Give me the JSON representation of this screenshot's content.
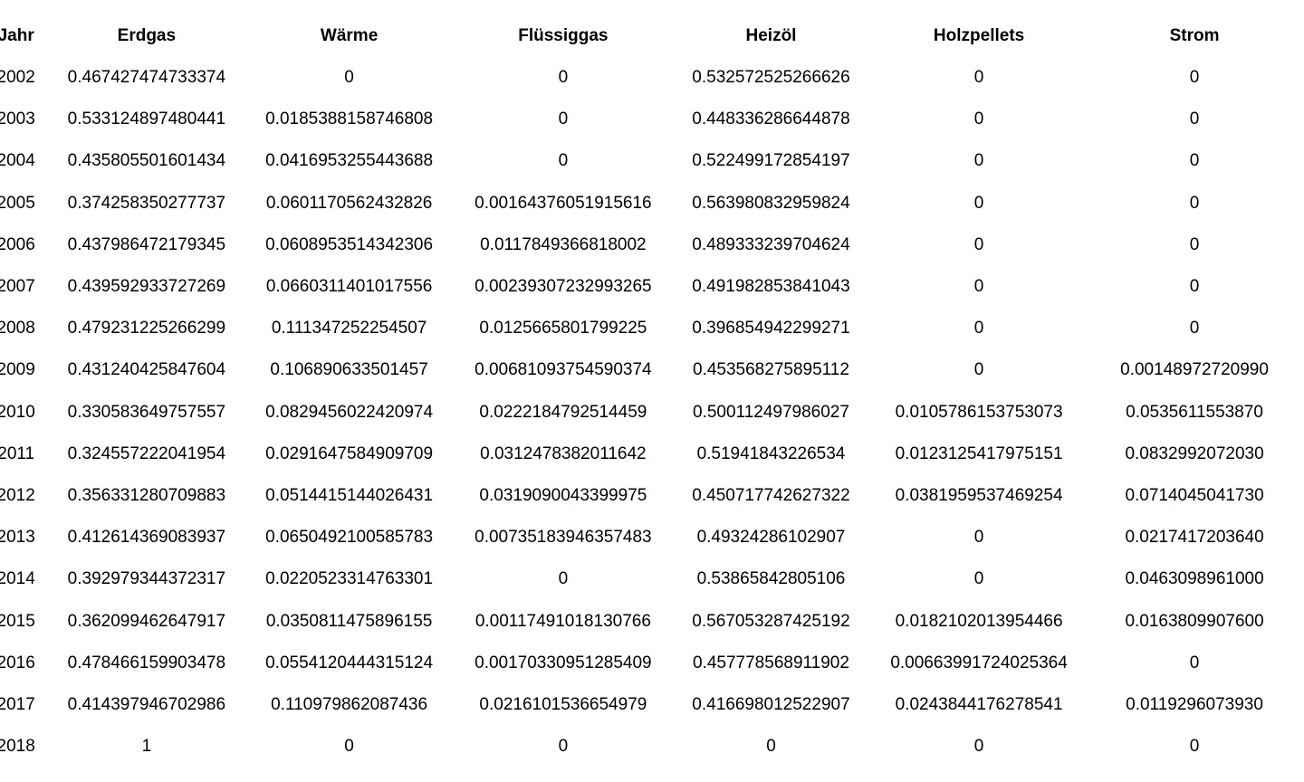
{
  "table": {
    "columns": [
      "Jahr",
      "Erdgas",
      "Wärme",
      "Flüssiggas",
      "Heizöl",
      "Holzpellets",
      "Strom"
    ],
    "rows": [
      [
        "2002",
        "0.467427474733374",
        "0",
        "0",
        "0.532572525266626",
        "0",
        "0"
      ],
      [
        "2003",
        "0.533124897480441",
        "0.0185388158746808",
        "0",
        "0.448336286644878",
        "0",
        "0"
      ],
      [
        "2004",
        "0.435805501601434",
        "0.0416953255443688",
        "0",
        "0.522499172854197",
        "0",
        "0"
      ],
      [
        "2005",
        "0.374258350277737",
        "0.0601170562432826",
        "0.00164376051915616",
        "0.563980832959824",
        "0",
        "0"
      ],
      [
        "2006",
        "0.437986472179345",
        "0.0608953514342306",
        "0.0117849366818002",
        "0.489333239704624",
        "0",
        "0"
      ],
      [
        "2007",
        "0.439592933727269",
        "0.0660311401017556",
        "0.00239307232993265",
        "0.491982853841043",
        "0",
        "0"
      ],
      [
        "2008",
        "0.479231225266299",
        "0.111347252254507",
        "0.0125665801799225",
        "0.396854942299271",
        "0",
        "0"
      ],
      [
        "2009",
        "0.431240425847604",
        "0.106890633501457",
        "0.00681093754590374",
        "0.453568275895112",
        "0",
        "0.00148972720990"
      ],
      [
        "2010",
        "0.330583649757557",
        "0.0829456022420974",
        "0.0222184792514459",
        "0.500112497986027",
        "0.0105786153753073",
        "0.0535611553870"
      ],
      [
        "2011",
        "0.324557222041954",
        "0.0291647584909709",
        "0.0312478382011642",
        "0.51941843226534",
        "0.0123125417975151",
        "0.0832992072030"
      ],
      [
        "2012",
        "0.356331280709883",
        "0.0514415144026431",
        "0.0319090043399975",
        "0.450717742627322",
        "0.0381959537469254",
        "0.0714045041730"
      ],
      [
        "2013",
        "0.412614369083937",
        "0.0650492100585783",
        "0.00735183946357483",
        "0.49324286102907",
        "0",
        "0.0217417203640"
      ],
      [
        "2014",
        "0.392979344372317",
        "0.0220523314763301",
        "0",
        "0.53865842805106",
        "0",
        "0.0463098961000"
      ],
      [
        "2015",
        "0.362099462647917",
        "0.0350811475896155",
        "0.00117491018130766",
        "0.567053287425192",
        "0.0182102013954466",
        "0.0163809907600"
      ],
      [
        "2016",
        "0.478466159903478",
        "0.0554120444315124",
        "0.00170330951285409",
        "0.457778568911902",
        "0.00663991724025364",
        "0"
      ],
      [
        "2017",
        "0.414397946702986",
        "0.110979862087436",
        "0.0216101536654979",
        "0.416698012522907",
        "0.0243844176278541",
        "0.0119296073930"
      ],
      [
        "2018",
        "1",
        "0",
        "0",
        "0",
        "0",
        "0"
      ]
    ]
  }
}
